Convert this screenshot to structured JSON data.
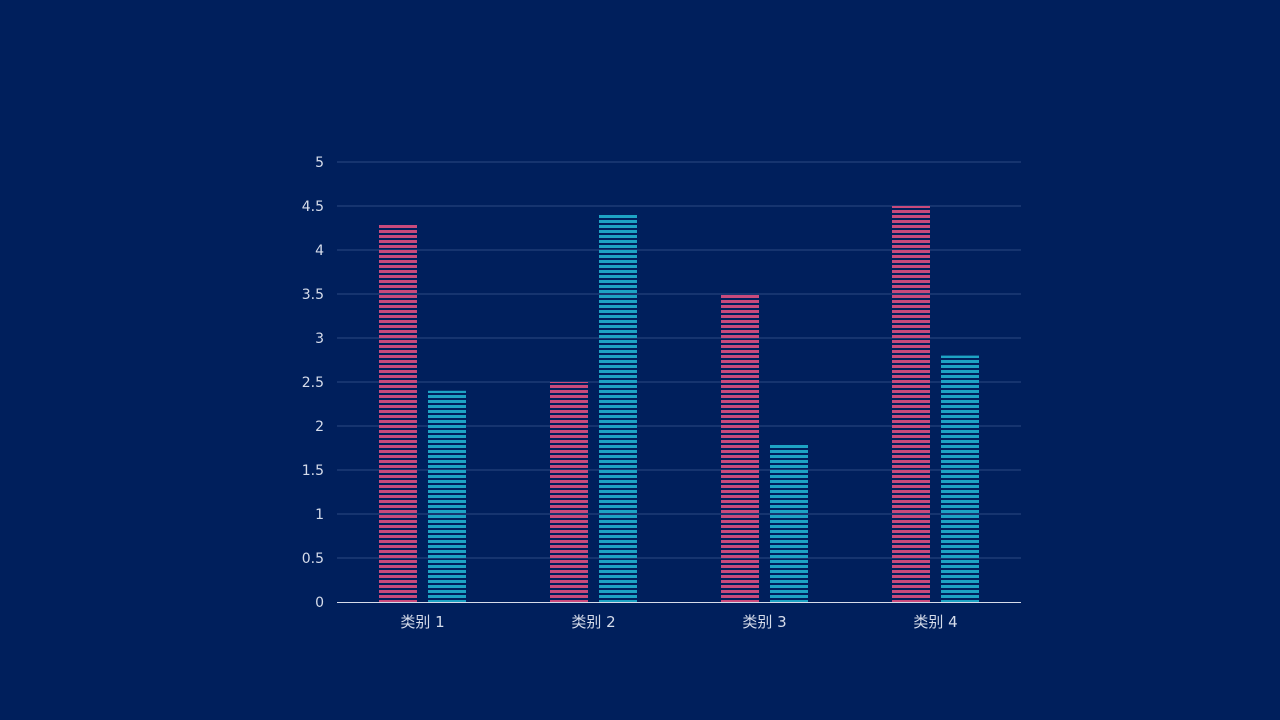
{
  "colors": {
    "background": "#001f5c",
    "grid": "#2c4a82",
    "axis": "#d6dcea",
    "text": "#d6dcea"
  },
  "chart_data": {
    "type": "bar",
    "categories": [
      "类别 1",
      "类别 2",
      "类别 3",
      "类别 4"
    ],
    "series": [
      {
        "values": [
          4.3,
          2.5,
          3.5,
          4.5
        ],
        "color": "#c94a7c",
        "pattern": "horizontal-stripes"
      },
      {
        "values": [
          2.4,
          4.4,
          1.8,
          2.8
        ],
        "color": "#1ea3c4",
        "pattern": "horizontal-stripes"
      }
    ],
    "title": "",
    "xlabel": "",
    "ylabel": "",
    "ylim": [
      0,
      5
    ],
    "yticks": [
      "0",
      "0.5",
      "1",
      "1.5",
      "2",
      "2.5",
      "3",
      "3.5",
      "4",
      "4.5",
      "5"
    ],
    "grid": true,
    "legend": "none"
  }
}
